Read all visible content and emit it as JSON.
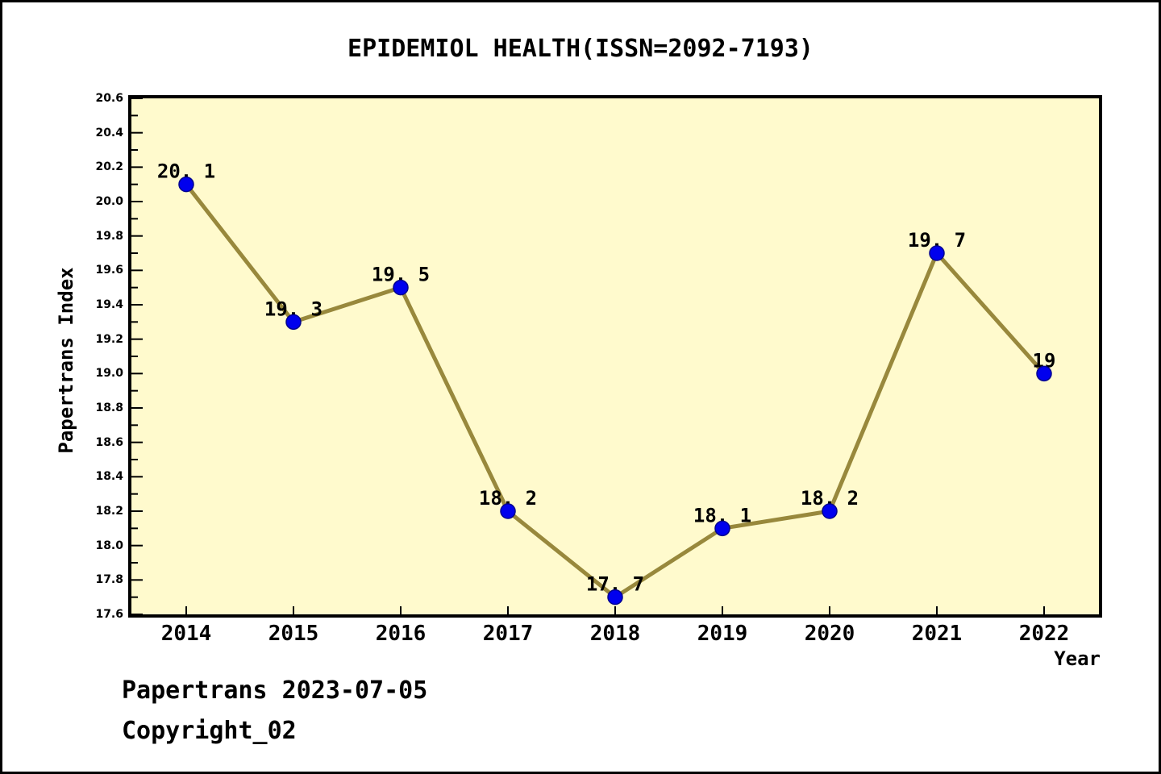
{
  "title": "EPIDEMIOL HEALTH(ISSN=2092-7193)",
  "footer": {
    "line1": "Papertrans 2023-07-05",
    "line2": "Copyright_02"
  },
  "chart_data": {
    "type": "line",
    "title": "EPIDEMIOL HEALTH(ISSN=2092-7193)",
    "xlabel": "Year",
    "ylabel": "Papertrans Index",
    "x": [
      2014,
      2015,
      2016,
      2017,
      2018,
      2019,
      2020,
      2021,
      2022
    ],
    "values": [
      20.1,
      19.3,
      19.5,
      18.2,
      17.7,
      18.1,
      18.2,
      19.7,
      19
    ],
    "point_labels": [
      "20. 1",
      "19. 3",
      "19. 5",
      "18. 2",
      "17. 7",
      "18. 1",
      "18. 2",
      "19. 7",
      "19"
    ],
    "ylim": [
      17.6,
      20.6
    ],
    "y_major_step": 0.2,
    "y_minor_step": 0.1,
    "grid": false,
    "legend": "none",
    "colors": {
      "plot_bg": "#FFFACD",
      "page_bg": "#FFFFFF",
      "line": "#98883C",
      "marker_fill": "#0000EE",
      "marker_edge": "#000090",
      "axis": "#000000",
      "text": "#000000"
    }
  }
}
